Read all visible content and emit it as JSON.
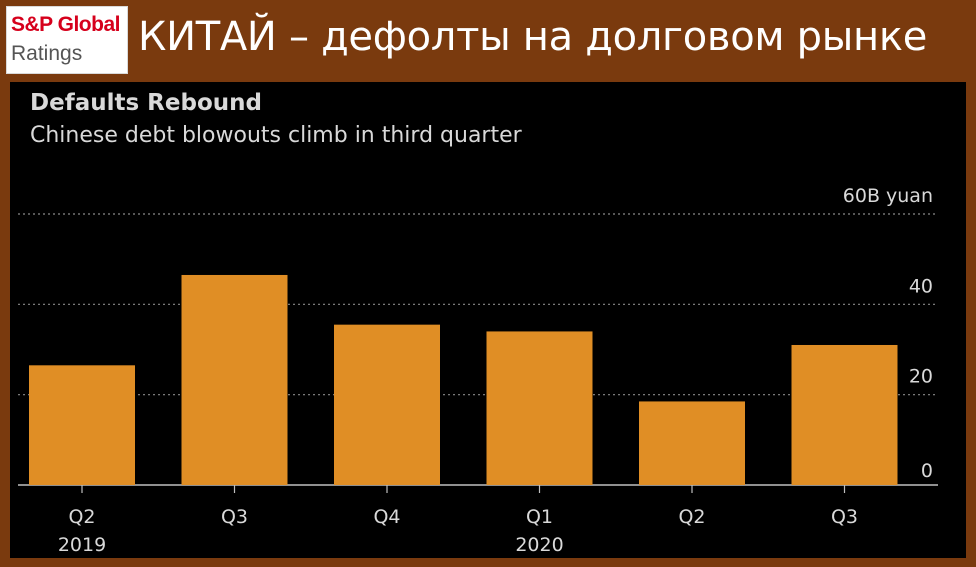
{
  "banner": {
    "logo_line1": "S&P Global",
    "logo_line2": "Ratings",
    "title": "КИТАЙ – дефолты на долговом рынке"
  },
  "colors": {
    "background": "#7a3a0e",
    "panel": "#000000",
    "bar": "#e08e25",
    "grid": "#8a8a8a",
    "text": "#d9d9d9"
  },
  "chart_data": {
    "type": "bar",
    "title": "Defaults Rebound",
    "subtitle": "Chinese debt blowouts climb in third quarter",
    "categories": [
      "Q2",
      "Q3",
      "Q4",
      "Q1",
      "Q2",
      "Q3"
    ],
    "year_labels": [
      "2019",
      "",
      "",
      "2020",
      "",
      ""
    ],
    "values": [
      26.5,
      46.5,
      35.5,
      34,
      18.5,
      31
    ],
    "ylim": [
      0,
      60
    ],
    "yticks": [
      0,
      20,
      40,
      60
    ],
    "ytick_labels": [
      "0",
      "20",
      "40",
      "60B yuan"
    ],
    "grid": true,
    "y_axis_side": "right"
  }
}
